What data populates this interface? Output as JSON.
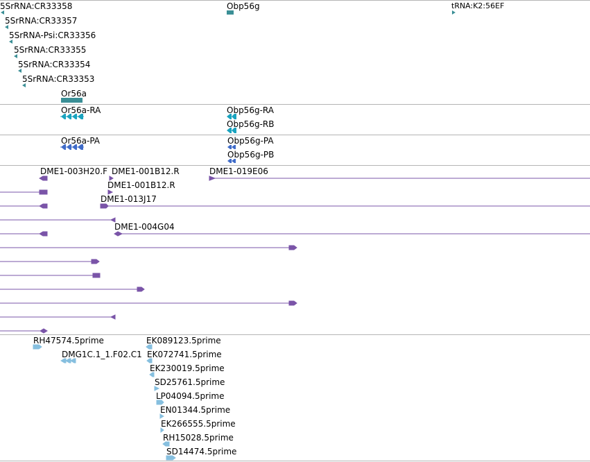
{
  "colors": {
    "gene": "#3b8f96",
    "rna": "#1aa3bf",
    "protein": "#3f6bc8",
    "clone": "#7a54a8",
    "est": "#86bfdf",
    "separator": "#b4b4b4"
  },
  "tracks": [
    {
      "name": "gene-track",
      "features": [
        {
          "label": "5SrRNA:CR33358",
          "strand": "-"
        },
        {
          "label": "Obp56g",
          "strand": "-"
        },
        {
          "label": "tRNA:K2:56EF",
          "strand": "+"
        },
        {
          "label": "5SrRNA:CR33357",
          "strand": "-"
        },
        {
          "label": "5SrRNA-Psi:CR33356",
          "strand": "-"
        },
        {
          "label": "5SrRNA:CR33355",
          "strand": "-"
        },
        {
          "label": "5SrRNA:CR33354",
          "strand": "-"
        },
        {
          "label": "5SrRNA:CR33353",
          "strand": "-"
        },
        {
          "label": "Or56a",
          "strand": "-"
        }
      ]
    },
    {
      "name": "transcript-track",
      "features": [
        {
          "label": "Or56a-RA",
          "strand": "-",
          "exons": 4
        },
        {
          "label": "Obp56g-RA",
          "strand": "-",
          "exons": 2
        },
        {
          "label": "Obp56g-RB",
          "strand": "-",
          "exons": 2
        }
      ]
    },
    {
      "name": "protein-track",
      "features": [
        {
          "label": "Or56a-PA",
          "strand": "-",
          "exons": 4
        },
        {
          "label": "Obp56g-PA",
          "strand": "-",
          "exons": 2
        },
        {
          "label": "Obp56g-PB",
          "strand": "-",
          "exons": 2
        }
      ]
    },
    {
      "name": "clone-track",
      "features": [
        {
          "label": "DME1-003H20.F",
          "strand": "-"
        },
        {
          "label": "DME1-001B12.R",
          "strand": "+"
        },
        {
          "label": "DME1-019E06",
          "strand": "+"
        },
        {
          "label": "DME1-001B12.R",
          "strand": "+"
        },
        {
          "label": "DME1-013J17",
          "strand": "+"
        },
        {
          "label": "DME1-004G04",
          "strand": "+"
        }
      ]
    },
    {
      "name": "est-track",
      "features": [
        {
          "label": "RH47574.5prime",
          "strand": "+"
        },
        {
          "label": "EK089123.5prime",
          "strand": "-"
        },
        {
          "label": "DMG1C.1_1.F02.C1",
          "strand": "-"
        },
        {
          "label": "EK072741.5prime",
          "strand": "-"
        },
        {
          "label": "EK230019.5prime",
          "strand": "-"
        },
        {
          "label": "SD25761.5prime",
          "strand": "+"
        },
        {
          "label": "LP04094.5prime",
          "strand": "+"
        },
        {
          "label": "EN01344.5prime",
          "strand": "+"
        },
        {
          "label": "EK266555.5prime",
          "strand": "+"
        },
        {
          "label": "RH15028.5prime",
          "strand": "-"
        },
        {
          "label": "SD14474.5prime",
          "strand": "+"
        }
      ]
    }
  ]
}
